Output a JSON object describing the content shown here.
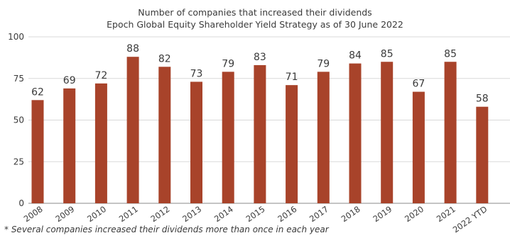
{
  "chart_data": {
    "type": "bar",
    "title": "Number of companies that increased their dividends",
    "subtitle": "Epoch Global Equity Shareholder Yield Strategy as of 30 June 2022",
    "categories": [
      "2008",
      "2009",
      "2010",
      "2011",
      "2012",
      "2013",
      "2014",
      "2015",
      "2016",
      "2017",
      "2018",
      "2019",
      "2020",
      "2021",
      "2022 YTD"
    ],
    "values": [
      62,
      69,
      72,
      88,
      82,
      73,
      79,
      83,
      71,
      79,
      84,
      85,
      67,
      85,
      58
    ],
    "y_ticks": [
      0,
      25,
      50,
      75,
      100
    ],
    "ylim": [
      0,
      100
    ],
    "bar_color": "#a8432a",
    "grid": true,
    "legend": "none",
    "footnote": "* Several companies increased their dividends more than once in each year"
  }
}
